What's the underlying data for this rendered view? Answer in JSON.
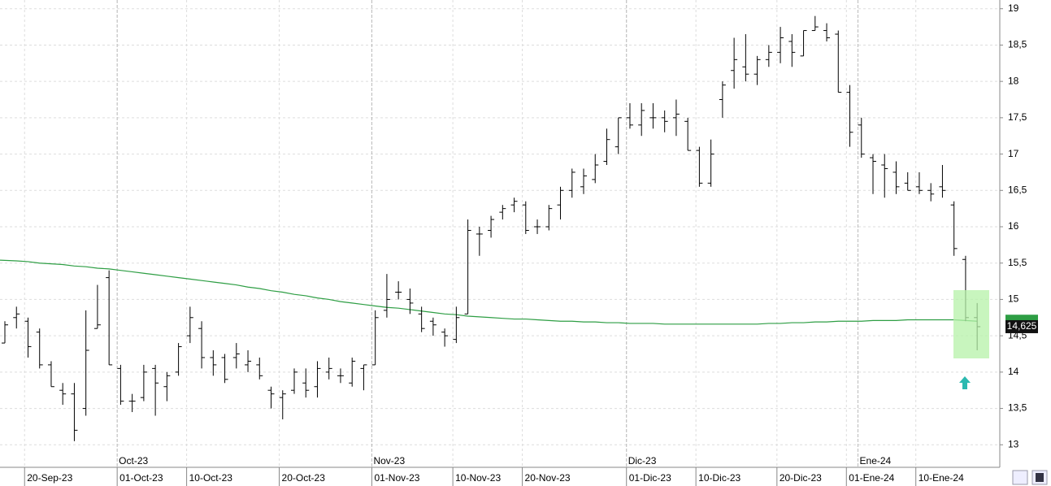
{
  "chart_data": {
    "type": "ohlc",
    "categories": [
      null,
      "20-Sep-23",
      null,
      null,
      null,
      null,
      null,
      null,
      null,
      "01-Oct-23",
      null,
      null,
      null,
      null,
      null,
      "10-Oct-23",
      null,
      null,
      null,
      null,
      null,
      null,
      null,
      "20-Oct-23",
      null,
      null,
      null,
      null,
      null,
      null,
      null,
      "01-Nov-23",
      null,
      null,
      null,
      null,
      null,
      null,
      "10-Nov-23",
      null,
      null,
      null,
      null,
      null,
      "20-Nov-23",
      null,
      null,
      null,
      null,
      null,
      null,
      null,
      null,
      "01-Dic-23",
      null,
      null,
      null,
      null,
      null,
      "10-Dic-23",
      null,
      null,
      null,
      null,
      null,
      null,
      "20-Dic-23",
      null,
      null,
      null,
      null,
      null,
      "01-Ene-24",
      null,
      null,
      null,
      null,
      null,
      "10-Ene-24",
      null,
      null,
      null,
      null,
      null,
      null
    ],
    "month_categories": [
      null,
      null,
      null,
      null,
      null,
      null,
      null,
      null,
      null,
      "Oct-23",
      null,
      null,
      null,
      null,
      null,
      null,
      null,
      null,
      null,
      null,
      null,
      null,
      null,
      null,
      null,
      null,
      null,
      null,
      null,
      null,
      null,
      "Nov-23",
      null,
      null,
      null,
      null,
      null,
      null,
      null,
      null,
      null,
      null,
      null,
      null,
      null,
      null,
      null,
      null,
      null,
      null,
      null,
      null,
      null,
      "Dic-23",
      null,
      null,
      null,
      null,
      null,
      null,
      null,
      null,
      null,
      null,
      null,
      null,
      null,
      null,
      null,
      null,
      null,
      null,
      null,
      "Ene-24",
      null,
      null,
      null,
      null,
      null,
      null,
      null,
      null,
      null,
      null,
      null,
      null
    ],
    "open": [
      14.4,
      14.75,
      14.7,
      14.55,
      14.1,
      13.75,
      13.7,
      13.5,
      14.6,
      15.3,
      14.05,
      13.6,
      13.65,
      14.05,
      13.8,
      14.0,
      14.5,
      14.6,
      14.2,
      14.2,
      14.2,
      14.1,
      14.1,
      13.75,
      13.65,
      13.75,
      13.85,
      13.8,
      14.0,
      13.95,
      13.85,
      14.05,
      14.1,
      14.85,
      15.1,
      15.0,
      14.8,
      14.7,
      14.55,
      14.45,
      14.8,
      15.9,
      15.95,
      16.2,
      16.3,
      16.3,
      16.0,
      16.0,
      16.3,
      16.5,
      16.55,
      16.65,
      16.9,
      17.1,
      17.5,
      17.4,
      17.5,
      17.5,
      17.5,
      17.45,
      17.05,
      16.6,
      17.75,
      18.15,
      18.2,
      18.1,
      18.3,
      18.4,
      18.55,
      18.35,
      18.7,
      18.7,
      18.65,
      17.85,
      17.4,
      16.95,
      16.85,
      16.75,
      16.6,
      16.55,
      16.5,
      16.55,
      16.3,
      15.55,
      14.75
    ],
    "high": [
      14.7,
      14.9,
      14.75,
      14.6,
      14.15,
      13.85,
      13.85,
      14.85,
      15.2,
      15.4,
      14.1,
      13.7,
      14.1,
      14.1,
      14.0,
      14.4,
      14.9,
      14.7,
      14.3,
      14.25,
      14.4,
      14.3,
      14.2,
      13.8,
      13.75,
      14.05,
      14.05,
      14.15,
      14.2,
      14.05,
      14.2,
      14.1,
      14.85,
      15.35,
      15.25,
      15.15,
      14.9,
      14.75,
      14.6,
      14.9,
      16.1,
      16.0,
      16.15,
      16.3,
      16.4,
      16.35,
      16.1,
      16.3,
      16.55,
      16.8,
      16.8,
      17.0,
      17.35,
      17.5,
      17.7,
      17.7,
      17.7,
      17.6,
      17.75,
      17.5,
      17.1,
      17.2,
      18.0,
      18.6,
      18.65,
      18.35,
      18.5,
      18.75,
      18.65,
      18.7,
      18.9,
      18.8,
      18.7,
      17.95,
      17.5,
      17.0,
      17.0,
      16.9,
      16.75,
      16.75,
      16.6,
      16.85,
      16.35,
      15.6,
      14.95
    ],
    "low": [
      14.4,
      14.6,
      14.2,
      14.05,
      13.8,
      13.55,
      13.05,
      13.4,
      14.6,
      14.1,
      13.55,
      13.45,
      13.6,
      13.4,
      13.6,
      13.95,
      14.4,
      14.05,
      13.95,
      13.85,
      14.05,
      14.0,
      13.9,
      13.5,
      13.35,
      13.7,
      13.65,
      13.65,
      13.9,
      13.85,
      13.8,
      13.75,
      14.1,
      14.75,
      15.0,
      14.8,
      14.55,
      14.5,
      14.35,
      14.4,
      14.8,
      15.6,
      15.85,
      16.1,
      16.2,
      15.9,
      15.9,
      15.95,
      16.1,
      16.4,
      16.45,
      16.6,
      16.85,
      17.0,
      17.35,
      17.25,
      17.35,
      17.3,
      17.25,
      17.05,
      16.55,
      16.55,
      17.5,
      17.9,
      18.0,
      17.95,
      18.2,
      18.25,
      18.2,
      18.35,
      18.7,
      18.55,
      17.85,
      17.1,
      16.95,
      16.45,
      16.4,
      16.45,
      16.5,
      16.45,
      16.35,
      16.4,
      15.6,
      14.7,
      14.3
    ],
    "close": [
      14.65,
      14.8,
      14.35,
      14.1,
      13.8,
      13.7,
      13.2,
      14.3,
      14.65,
      14.1,
      13.6,
      13.6,
      14.0,
      13.85,
      13.95,
      14.35,
      14.75,
      14.2,
      14.1,
      13.9,
      14.25,
      14.15,
      13.95,
      13.7,
      13.7,
      14.0,
      13.75,
      14.05,
      14.05,
      13.95,
      14.15,
      14.1,
      14.75,
      15.0,
      15.1,
      14.95,
      14.6,
      14.65,
      14.5,
      14.75,
      15.95,
      15.9,
      16.1,
      16.25,
      16.35,
      15.95,
      16.0,
      16.25,
      16.5,
      16.75,
      16.7,
      16.85,
      17.2,
      17.5,
      17.4,
      17.6,
      17.5,
      17.45,
      17.55,
      17.05,
      16.6,
      17.0,
      17.95,
      18.3,
      18.1,
      18.3,
      18.4,
      18.6,
      18.4,
      18.7,
      18.75,
      18.6,
      17.85,
      17.3,
      17.0,
      16.9,
      16.8,
      16.55,
      16.5,
      16.5,
      16.45,
      16.5,
      15.7,
      14.75,
      14.625
    ],
    "close_labels": {
      "84": "14,625"
    },
    "moving_average": {
      "color": "#2e9e44",
      "values": [
        15.54,
        15.53,
        15.52,
        15.5,
        15.49,
        15.48,
        15.46,
        15.45,
        15.43,
        15.42,
        15.4,
        15.38,
        15.36,
        15.34,
        15.32,
        15.3,
        15.28,
        15.26,
        15.24,
        15.22,
        15.2,
        15.17,
        15.15,
        15.12,
        15.1,
        15.07,
        15.05,
        15.02,
        15.0,
        14.97,
        14.95,
        14.93,
        14.91,
        14.89,
        14.88,
        14.86,
        14.84,
        14.82,
        14.8,
        14.79,
        14.77,
        14.76,
        14.75,
        14.74,
        14.73,
        14.73,
        14.72,
        14.71,
        14.7,
        14.7,
        14.69,
        14.69,
        14.68,
        14.68,
        14.67,
        14.67,
        14.67,
        14.66,
        14.66,
        14.66,
        14.66,
        14.66,
        14.66,
        14.66,
        14.66,
        14.66,
        14.67,
        14.67,
        14.68,
        14.68,
        14.69,
        14.69,
        14.7,
        14.7,
        14.7,
        14.71,
        14.71,
        14.71,
        14.72,
        14.72,
        14.72,
        14.72,
        14.72,
        14.71,
        14.7
      ]
    },
    "color": "#000000",
    "ylim": [
      12.69,
      19.12
    ],
    "yticks": [
      13,
      {
        "value": 13.5,
        "label": "13,5"
      },
      14,
      {
        "value": 14.5,
        "label": "14,5"
      },
      15,
      {
        "value": 15.5,
        "label": "15,5"
      },
      16,
      {
        "value": 16.5,
        "label": "16,5"
      },
      17,
      {
        "value": 17.5,
        "label": "17,5"
      },
      18,
      {
        "value": 18.5,
        "label": "18,5"
      },
      19
    ],
    "grid": true
  }
}
